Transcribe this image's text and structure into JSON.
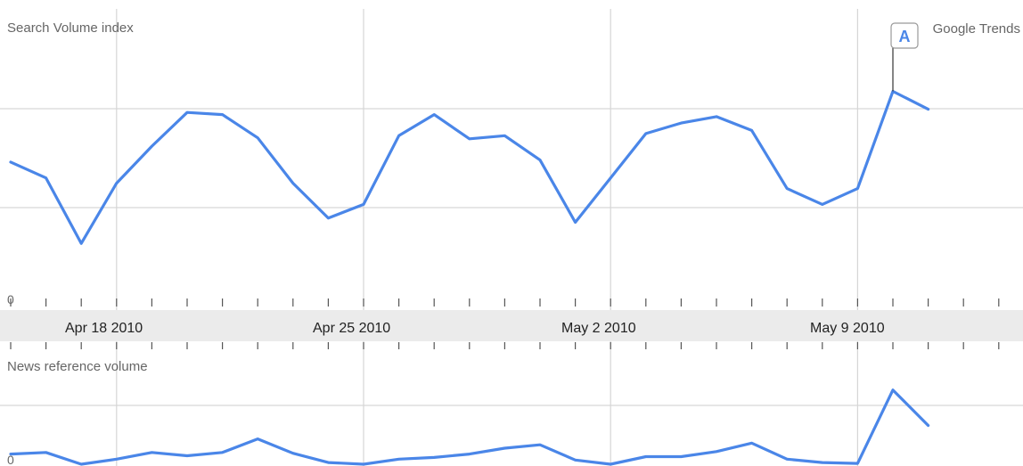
{
  "chart_data": [
    {
      "type": "line",
      "title": "Search Volume index",
      "source_label": "Google Trends",
      "ylabel": "",
      "y_tick_labels": [
        "0"
      ],
      "x_tick_labels": [
        "Apr 18 2010",
        "Apr 25 2010",
        "May 2 2010",
        "May 9 2010"
      ],
      "x": [
        "Apr 15 2010",
        "Apr 16 2010",
        "Apr 17 2010",
        "Apr 18 2010",
        "Apr 19 2010",
        "Apr 20 2010",
        "Apr 21 2010",
        "Apr 22 2010",
        "Apr 23 2010",
        "Apr 24 2010",
        "Apr 25 2010",
        "Apr 26 2010",
        "Apr 27 2010",
        "Apr 28 2010",
        "Apr 29 2010",
        "Apr 30 2010",
        "May 1 2010",
        "May 2 2010",
        "May 3 2010",
        "May 4 2010",
        "May 5 2010",
        "May 6 2010",
        "May 7 2010",
        "May 8 2010",
        "May 9 2010",
        "May 10 2010",
        "May 11 2010"
      ],
      "series": [
        {
          "color": "#4a86e8",
          "values": [
            1.35,
            1.2,
            0.58,
            1.15,
            1.5,
            1.82,
            1.8,
            1.58,
            1.15,
            0.82,
            0.95,
            1.6,
            1.8,
            1.57,
            1.6,
            1.37,
            0.78,
            1.2,
            1.62,
            1.72,
            1.78,
            1.65,
            1.1,
            0.95,
            1.1,
            2.02,
            1.85
          ]
        }
      ],
      "annotations": [
        {
          "label": "A",
          "x": "May 10 2010"
        }
      ],
      "ylim": [
        0,
        2.8
      ],
      "grid": true,
      "legend": "none"
    },
    {
      "type": "line",
      "title": "News reference volume",
      "ylabel": "",
      "y_tick_labels": [
        "0"
      ],
      "x": [
        "Apr 15 2010",
        "Apr 16 2010",
        "Apr 17 2010",
        "Apr 18 2010",
        "Apr 19 2010",
        "Apr 20 2010",
        "Apr 21 2010",
        "Apr 22 2010",
        "Apr 23 2010",
        "Apr 24 2010",
        "Apr 25 2010",
        "Apr 26 2010",
        "Apr 27 2010",
        "Apr 28 2010",
        "Apr 29 2010",
        "Apr 30 2010",
        "May 1 2010",
        "May 2 2010",
        "May 3 2010",
        "May 4 2010",
        "May 5 2010",
        "May 6 2010",
        "May 7 2010",
        "May 8 2010",
        "May 9 2010",
        "May 10 2010",
        "May 11 2010"
      ],
      "series": [
        {
          "color": "#4a86e8",
          "values": [
            0.12,
            0.14,
            0,
            0.06,
            0.14,
            0.1,
            0.14,
            0.3,
            0.13,
            0.02,
            0,
            0.06,
            0.08,
            0.12,
            0.19,
            0.23,
            0.05,
            0,
            0.09,
            0.09,
            0.15,
            0.25,
            0.06,
            0.02,
            0.01,
            0.88,
            0.46
          ]
        }
      ],
      "ylim": [
        0,
        1.3
      ],
      "grid": true,
      "legend": "none"
    }
  ]
}
